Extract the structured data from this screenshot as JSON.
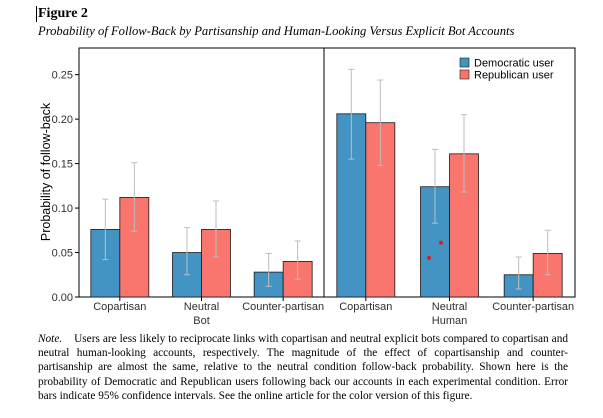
{
  "figure": {
    "label": "Figure 2",
    "caption": "Probability of Follow-Back by Partisanship and Human-Looking Versus Explicit Bot Accounts"
  },
  "note": {
    "lead": "Note.",
    "text": "Users are less likely to reciprocate links with copartisan and neutral explicit bots compared to copartisan and neutral human-looking accounts, respectively. The magnitude of the effect of copartisanship and counter-partisanship are almost the same, relative to the neutral condition follow-back probability. Shown here is the probability of Democratic and Republican users following back our accounts in each experimental condition. Error bars indicate 95% confidence intervals. See the online article for the color version of this figure."
  },
  "chart_data": {
    "type": "bar",
    "ylabel": "Probability of follow-back",
    "ylim": [
      0,
      0.28
    ],
    "y_ticks": [
      "0.00",
      "0.05",
      "0.10",
      "0.15",
      "0.20",
      "0.25"
    ],
    "y_tick_values": [
      0,
      0.05,
      0.1,
      0.15,
      0.2,
      0.25
    ],
    "grid": false,
    "legend_position": "top-right",
    "colors": {
      "democratic": "#4393C3",
      "republican": "#F8766D",
      "error_bar": "#BDBDBD",
      "outlier": "#E41A1C"
    },
    "categories": [
      "Copartisan",
      "Neutral",
      "Counter-partisan"
    ],
    "panels": [
      {
        "name": "Bot",
        "series": [
          {
            "name": "Democratic user",
            "values": [
              0.076,
              0.05,
              0.028
            ],
            "ci_low": [
              0.042,
              0.025,
              0.012
            ],
            "ci_high": [
              0.11,
              0.078,
              0.049
            ]
          },
          {
            "name": "Republican user",
            "values": [
              0.112,
              0.076,
              0.04
            ],
            "ci_low": [
              0.074,
              0.045,
              0.02
            ],
            "ci_high": [
              0.151,
              0.108,
              0.063
            ]
          }
        ],
        "outliers": []
      },
      {
        "name": "Human",
        "series": [
          {
            "name": "Democratic user",
            "values": [
              0.206,
              0.124,
              0.025
            ],
            "ci_low": [
              0.155,
              0.083,
              0.009
            ],
            "ci_high": [
              0.256,
              0.166,
              0.045
            ]
          },
          {
            "name": "Republican user",
            "values": [
              0.196,
              0.161,
              0.049
            ],
            "ci_low": [
              0.148,
              0.118,
              0.025
            ],
            "ci_high": [
              0.244,
              0.205,
              0.075
            ]
          }
        ],
        "outliers": [
          {
            "category": "Neutral",
            "series": "Democratic user",
            "value": 0.044
          },
          {
            "category": "Neutral",
            "series": "Democratic user",
            "value": 0.061
          }
        ]
      }
    ]
  }
}
